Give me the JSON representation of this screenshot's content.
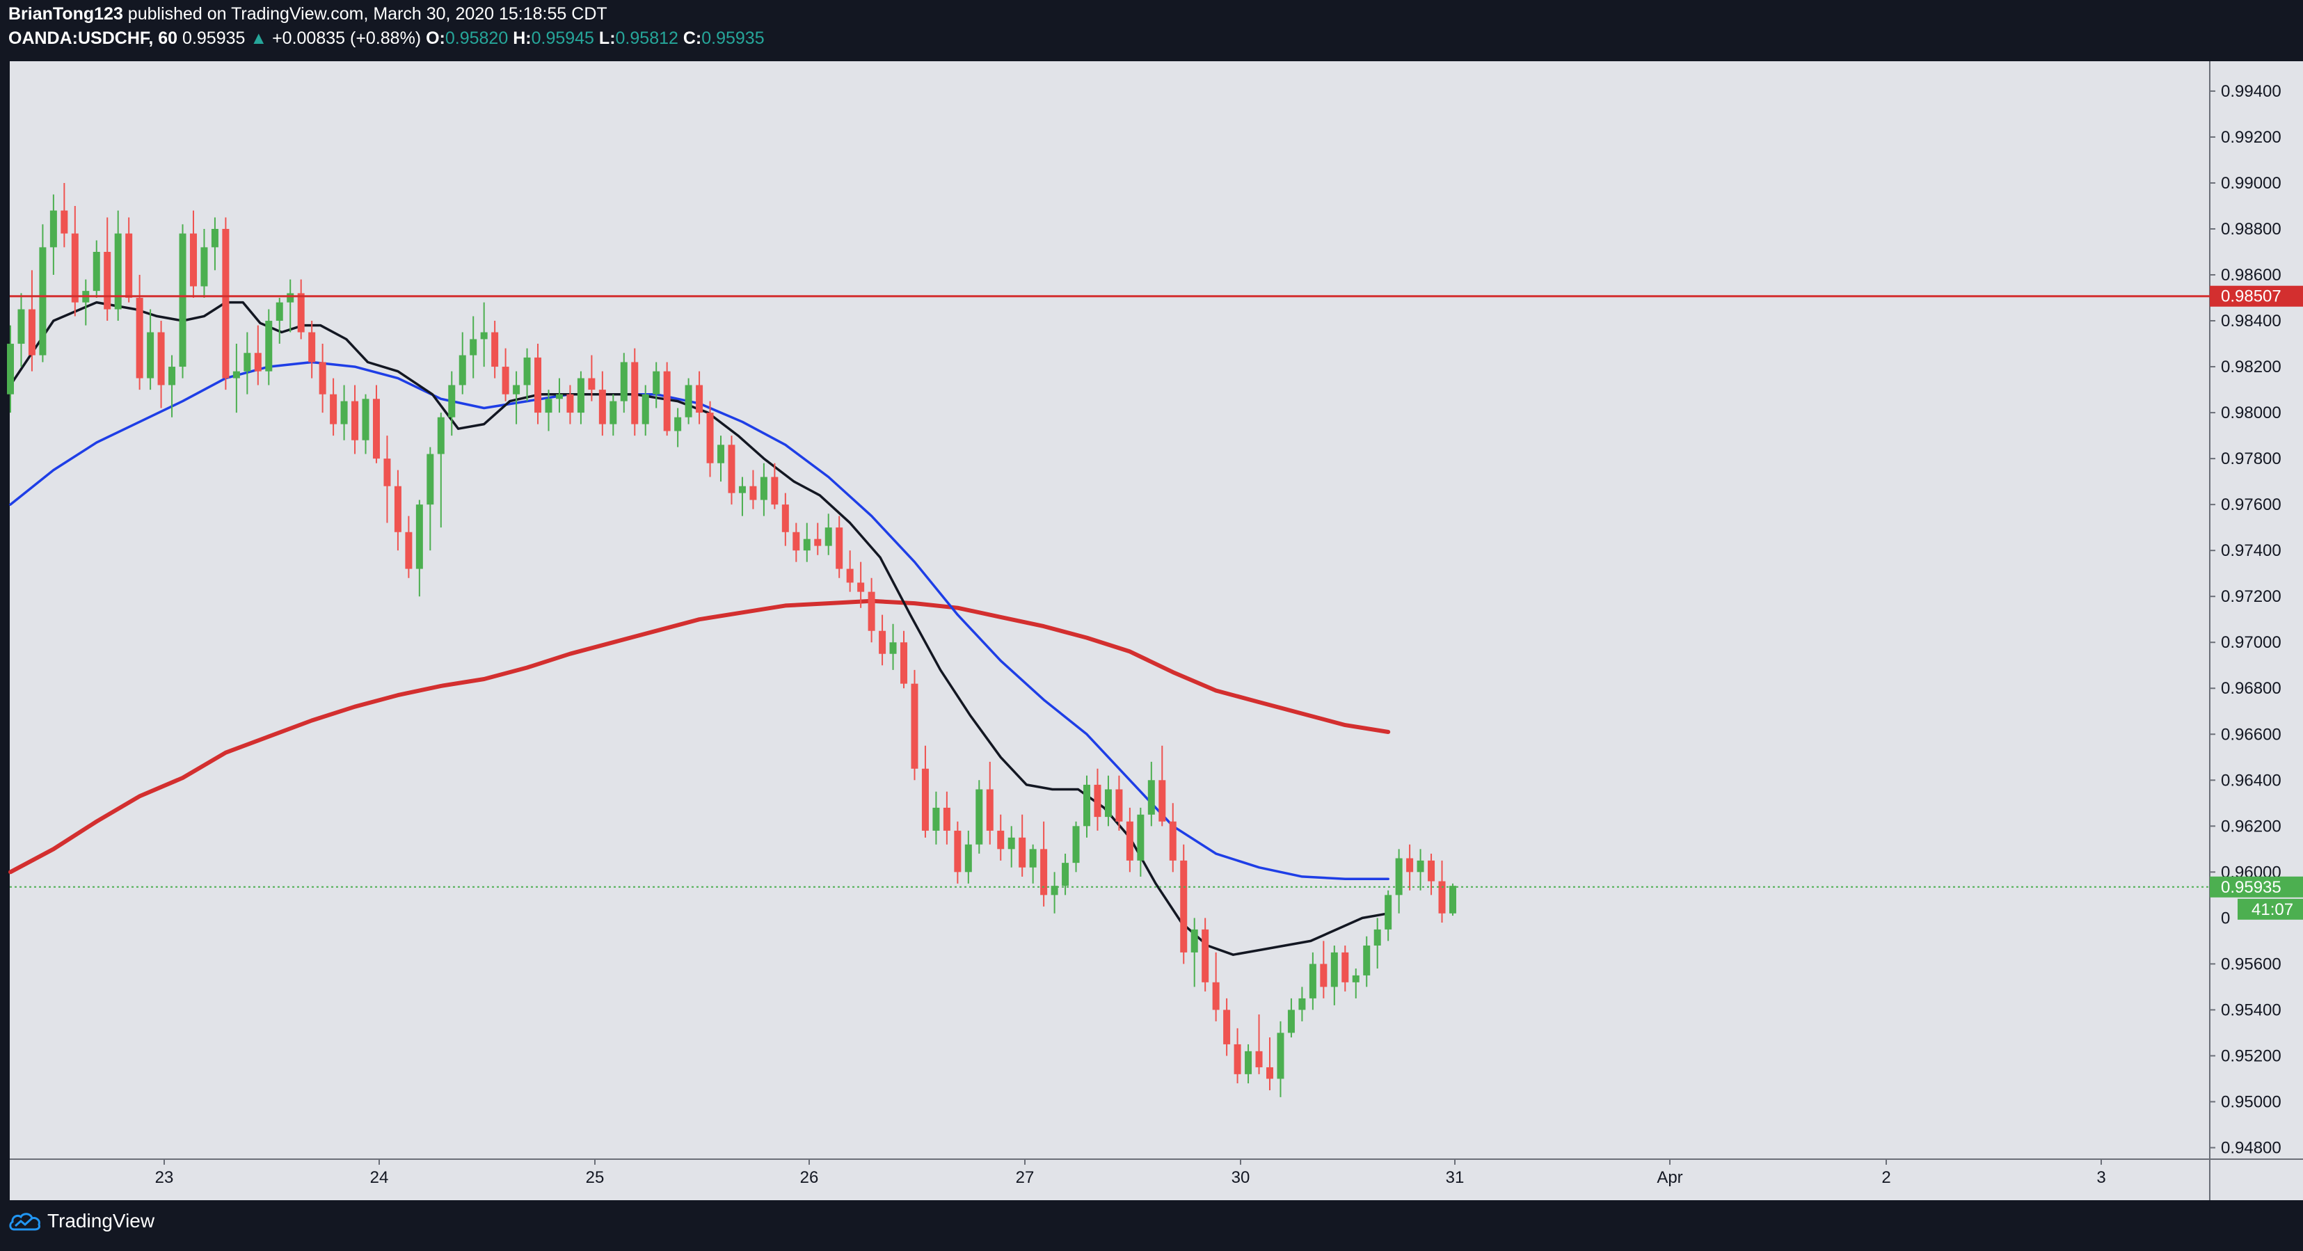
{
  "header": {
    "author": "BrianTong123",
    "published": "published on TradingView.com, March 30, 2020 15:18:55 CDT",
    "symbol": "OANDA:USDCHF, 60",
    "last": "0.95935",
    "change_arrow": "▲",
    "change": "+0.00835 (+0.88%)",
    "o_label": "O:",
    "o": "0.95820",
    "h_label": "H:",
    "h": "0.95945",
    "l_label": "L:",
    "l": "0.95812",
    "c_label": "C:",
    "c": "0.95935"
  },
  "price_axis": {
    "ticks": [
      "0.99400",
      "0.99200",
      "0.99000",
      "0.98800",
      "0.98600",
      "0.98400",
      "0.98200",
      "0.98000",
      "0.97800",
      "0.97600",
      "0.97400",
      "0.97200",
      "0.97000",
      "0.96800",
      "0.96600",
      "0.96400",
      "0.96200",
      "0.96000",
      "0.95600",
      "0.95400",
      "0.95200",
      "0.95000",
      "0.94800"
    ],
    "resistance_label": "0.98507",
    "current_label": "0.95935",
    "countdown_label": "41:07",
    "hidden_tick_fragment": "0"
  },
  "time_axis": {
    "labels": [
      "23",
      "24",
      "25",
      "26",
      "27",
      "30",
      "31",
      "Apr",
      "2",
      "3"
    ]
  },
  "footer": {
    "brand": "TradingView"
  },
  "colors": {
    "background": "#131722",
    "chart_bg": "#e1e3e8",
    "up": "#4caf50",
    "down": "#ef5350",
    "ma_fast": "#131722",
    "ma_mid": "#1e3ee6",
    "ma_slow": "#d32f2f",
    "resistance": "#d32f2f",
    "current_line": "#4caf50"
  },
  "chart_data": {
    "type": "candlestick",
    "symbol": "OANDA:USDCHF",
    "interval": "60",
    "ylim": [
      0.9475,
      0.9953
    ],
    "x_labels": [
      "23",
      "24",
      "25",
      "26",
      "27",
      "30",
      "31",
      "Apr",
      "2",
      "3"
    ],
    "resistance_level": 0.98507,
    "current_price": 0.95935,
    "ma_fast": [
      [
        0,
        0.9812
      ],
      [
        1.0,
        0.984
      ],
      [
        2,
        0.9848
      ],
      [
        2.9,
        0.9845
      ],
      [
        3.4,
        0.9842
      ],
      [
        4.0,
        0.984
      ],
      [
        4.5,
        0.9842
      ],
      [
        5.0,
        0.9848
      ],
      [
        5.4,
        0.9848
      ],
      [
        5.8,
        0.9839
      ],
      [
        6.3,
        0.9835
      ],
      [
        6.8,
        0.9838
      ],
      [
        7.2,
        0.9838
      ],
      [
        7.8,
        0.9832
      ],
      [
        8.3,
        0.9822
      ],
      [
        9.0,
        0.9818
      ],
      [
        9.8,
        0.9808
      ],
      [
        10.4,
        0.9793
      ],
      [
        11.0,
        0.9795
      ],
      [
        11.6,
        0.9805
      ],
      [
        12.3,
        0.9808
      ],
      [
        13.5,
        0.9808
      ],
      [
        14.5,
        0.9808
      ],
      [
        15.5,
        0.9805
      ],
      [
        16.2,
        0.98
      ],
      [
        16.9,
        0.979
      ],
      [
        17.5,
        0.978
      ],
      [
        18.2,
        0.977
      ],
      [
        18.8,
        0.9764
      ],
      [
        19.5,
        0.9752
      ],
      [
        20.2,
        0.9737
      ],
      [
        20.9,
        0.9712
      ],
      [
        21.6,
        0.9688
      ],
      [
        22.3,
        0.9668
      ],
      [
        23.0,
        0.965
      ],
      [
        23.6,
        0.9638
      ],
      [
        24.2,
        0.9636
      ],
      [
        24.8,
        0.9636
      ],
      [
        25.4,
        0.9628
      ],
      [
        26.0,
        0.9615
      ],
      [
        26.6,
        0.9595
      ],
      [
        27.2,
        0.9578
      ],
      [
        27.8,
        0.9568
      ],
      [
        28.4,
        0.9564
      ],
      [
        29.0,
        0.9566
      ],
      [
        29.6,
        0.9568
      ],
      [
        30.2,
        0.957
      ],
      [
        30.8,
        0.9575
      ],
      [
        31.4,
        0.958
      ],
      [
        32.0,
        0.9582
      ]
    ],
    "ma_mid": [
      [
        0,
        0.976
      ],
      [
        1,
        0.9775
      ],
      [
        2,
        0.9787
      ],
      [
        3,
        0.9796
      ],
      [
        4,
        0.9805
      ],
      [
        5,
        0.9815
      ],
      [
        6,
        0.982
      ],
      [
        7,
        0.9822
      ],
      [
        8,
        0.982
      ],
      [
        9,
        0.9815
      ],
      [
        10,
        0.9806
      ],
      [
        11,
        0.9802
      ],
      [
        12,
        0.9805
      ],
      [
        13,
        0.9808
      ],
      [
        14,
        0.9808
      ],
      [
        15,
        0.9808
      ],
      [
        16,
        0.9804
      ],
      [
        17,
        0.9796
      ],
      [
        18,
        0.9786
      ],
      [
        19,
        0.9772
      ],
      [
        20,
        0.9755
      ],
      [
        21,
        0.9735
      ],
      [
        22,
        0.9712
      ],
      [
        23,
        0.9692
      ],
      [
        24,
        0.9675
      ],
      [
        25,
        0.966
      ],
      [
        26,
        0.964
      ],
      [
        27,
        0.962
      ],
      [
        28,
        0.9608
      ],
      [
        29,
        0.9602
      ],
      [
        30,
        0.9598
      ],
      [
        31,
        0.9597
      ],
      [
        32,
        0.9597
      ]
    ],
    "ma_slow": [
      [
        0,
        0.96
      ],
      [
        1,
        0.961
      ],
      [
        2,
        0.9622
      ],
      [
        3,
        0.9633
      ],
      [
        4,
        0.9641
      ],
      [
        5,
        0.9652
      ],
      [
        6,
        0.9659
      ],
      [
        7,
        0.9666
      ],
      [
        8,
        0.9672
      ],
      [
        9,
        0.9677
      ],
      [
        10,
        0.9681
      ],
      [
        11,
        0.9684
      ],
      [
        12,
        0.9689
      ],
      [
        13,
        0.9695
      ],
      [
        14,
        0.97
      ],
      [
        15,
        0.9705
      ],
      [
        16,
        0.971
      ],
      [
        17,
        0.9713
      ],
      [
        18,
        0.9716
      ],
      [
        19,
        0.9717
      ],
      [
        20,
        0.9718
      ],
      [
        21,
        0.9717
      ],
      [
        22,
        0.9715
      ],
      [
        23,
        0.9711
      ],
      [
        24,
        0.9707
      ],
      [
        25,
        0.9702
      ],
      [
        26,
        0.9696
      ],
      [
        27,
        0.9687
      ],
      [
        28,
        0.9679
      ],
      [
        29,
        0.9674
      ],
      [
        30,
        0.9669
      ],
      [
        31,
        0.9664
      ],
      [
        32,
        0.9661
      ]
    ],
    "candles": [
      [
        0.9808,
        0.9838,
        0.98,
        0.983
      ],
      [
        0.983,
        0.9852,
        0.982,
        0.9845
      ],
      [
        0.9845,
        0.9862,
        0.9818,
        0.9825
      ],
      [
        0.9825,
        0.9882,
        0.9822,
        0.9872
      ],
      [
        0.9872,
        0.9895,
        0.986,
        0.9888
      ],
      [
        0.9888,
        0.99,
        0.9872,
        0.9878
      ],
      [
        0.9878,
        0.989,
        0.9842,
        0.9848
      ],
      [
        0.9848,
        0.9858,
        0.9838,
        0.9853
      ],
      [
        0.9853,
        0.9875,
        0.985,
        0.987
      ],
      [
        0.987,
        0.9885,
        0.984,
        0.9845
      ],
      [
        0.9845,
        0.9888,
        0.984,
        0.9878
      ],
      [
        0.9878,
        0.9885,
        0.9848,
        0.985
      ],
      [
        0.985,
        0.986,
        0.981,
        0.9815
      ],
      [
        0.9815,
        0.9845,
        0.981,
        0.9835
      ],
      [
        0.9835,
        0.984,
        0.9802,
        0.9812
      ],
      [
        0.9812,
        0.9825,
        0.9798,
        0.982
      ],
      [
        0.982,
        0.9882,
        0.9815,
        0.9878
      ],
      [
        0.9878,
        0.9888,
        0.985,
        0.9855
      ],
      [
        0.9855,
        0.988,
        0.985,
        0.9872
      ],
      [
        0.9872,
        0.9885,
        0.9862,
        0.988
      ],
      [
        0.988,
        0.9885,
        0.981,
        0.9815
      ],
      [
        0.9815,
        0.983,
        0.98,
        0.9818
      ],
      [
        0.9818,
        0.9835,
        0.9808,
        0.9826
      ],
      [
        0.9826,
        0.9838,
        0.9812,
        0.9818
      ],
      [
        0.9818,
        0.9845,
        0.9812,
        0.984
      ],
      [
        0.984,
        0.985,
        0.983,
        0.9848
      ],
      [
        0.9848,
        0.9858,
        0.9835,
        0.9852
      ],
      [
        0.9852,
        0.9858,
        0.9832,
        0.9835
      ],
      [
        0.9835,
        0.984,
        0.9815,
        0.9822
      ],
      [
        0.9822,
        0.983,
        0.98,
        0.9808
      ],
      [
        0.9808,
        0.9815,
        0.979,
        0.9795
      ],
      [
        0.9795,
        0.9812,
        0.9788,
        0.9805
      ],
      [
        0.9805,
        0.9812,
        0.9782,
        0.9788
      ],
      [
        0.9788,
        0.9808,
        0.9782,
        0.9806
      ],
      [
        0.9806,
        0.9812,
        0.9778,
        0.978
      ],
      [
        0.978,
        0.979,
        0.9752,
        0.9768
      ],
      [
        0.9768,
        0.9775,
        0.974,
        0.9748
      ],
      [
        0.9748,
        0.9755,
        0.9728,
        0.9732
      ],
      [
        0.9732,
        0.9762,
        0.972,
        0.976
      ],
      [
        0.976,
        0.9785,
        0.974,
        0.9782
      ],
      [
        0.9782,
        0.98,
        0.975,
        0.9798
      ],
      [
        0.9798,
        0.9818,
        0.979,
        0.9812
      ],
      [
        0.9812,
        0.9835,
        0.9808,
        0.9825
      ],
      [
        0.9825,
        0.9842,
        0.9815,
        0.9832
      ],
      [
        0.9832,
        0.9848,
        0.982,
        0.9835
      ],
      [
        0.9835,
        0.984,
        0.9815,
        0.982
      ],
      [
        0.982,
        0.9828,
        0.9805,
        0.9808
      ],
      [
        0.9808,
        0.9818,
        0.9795,
        0.9812
      ],
      [
        0.9812,
        0.9828,
        0.9805,
        0.9824
      ],
      [
        0.9824,
        0.983,
        0.9795,
        0.98
      ],
      [
        0.98,
        0.981,
        0.9792,
        0.9806
      ],
      [
        0.9806,
        0.9815,
        0.98,
        0.9808
      ],
      [
        0.9808,
        0.9812,
        0.9795,
        0.98
      ],
      [
        0.98,
        0.9818,
        0.9795,
        0.9815
      ],
      [
        0.9815,
        0.9825,
        0.9805,
        0.981
      ],
      [
        0.981,
        0.9818,
        0.979,
        0.9795
      ],
      [
        0.9795,
        0.9808,
        0.979,
        0.9805
      ],
      [
        0.9805,
        0.9826,
        0.98,
        0.9822
      ],
      [
        0.9822,
        0.9828,
        0.979,
        0.9795
      ],
      [
        0.9795,
        0.9812,
        0.979,
        0.9808
      ],
      [
        0.9808,
        0.9822,
        0.9802,
        0.9818
      ],
      [
        0.9818,
        0.9822,
        0.979,
        0.9792
      ],
      [
        0.9792,
        0.9802,
        0.9785,
        0.9798
      ],
      [
        0.9798,
        0.9815,
        0.9795,
        0.9812
      ],
      [
        0.9812,
        0.9818,
        0.9795,
        0.98
      ],
      [
        0.98,
        0.9805,
        0.9772,
        0.9778
      ],
      [
        0.9778,
        0.979,
        0.977,
        0.9786
      ],
      [
        0.9786,
        0.979,
        0.976,
        0.9765
      ],
      [
        0.9765,
        0.9772,
        0.9755,
        0.9768
      ],
      [
        0.9768,
        0.9775,
        0.9758,
        0.9762
      ],
      [
        0.9762,
        0.9778,
        0.9755,
        0.9772
      ],
      [
        0.9772,
        0.9778,
        0.9758,
        0.976
      ],
      [
        0.976,
        0.9765,
        0.9742,
        0.9748
      ],
      [
        0.9748,
        0.9752,
        0.9735,
        0.974
      ],
      [
        0.974,
        0.9752,
        0.9735,
        0.9745
      ],
      [
        0.9745,
        0.9752,
        0.9738,
        0.9742
      ],
      [
        0.9742,
        0.9756,
        0.9738,
        0.975
      ],
      [
        0.975,
        0.9755,
        0.9728,
        0.9732
      ],
      [
        0.9732,
        0.974,
        0.9722,
        0.9726
      ],
      [
        0.9726,
        0.9735,
        0.9715,
        0.9722
      ],
      [
        0.9722,
        0.9728,
        0.97,
        0.9705
      ],
      [
        0.9705,
        0.9712,
        0.969,
        0.9695
      ],
      [
        0.9695,
        0.9708,
        0.9688,
        0.97
      ],
      [
        0.97,
        0.9705,
        0.968,
        0.9682
      ],
      [
        0.9682,
        0.9688,
        0.964,
        0.9645
      ],
      [
        0.9645,
        0.9655,
        0.9615,
        0.9618
      ],
      [
        0.9618,
        0.9635,
        0.9612,
        0.9628
      ],
      [
        0.9628,
        0.9635,
        0.9612,
        0.9618
      ],
      [
        0.9618,
        0.9622,
        0.9595,
        0.96
      ],
      [
        0.96,
        0.9618,
        0.9595,
        0.9612
      ],
      [
        0.9612,
        0.964,
        0.9608,
        0.9636
      ],
      [
        0.9636,
        0.9648,
        0.9612,
        0.9618
      ],
      [
        0.9618,
        0.9625,
        0.9605,
        0.961
      ],
      [
        0.961,
        0.962,
        0.9602,
        0.9615
      ],
      [
        0.9615,
        0.9625,
        0.9598,
        0.9602
      ],
      [
        0.9602,
        0.9612,
        0.9595,
        0.961
      ],
      [
        0.961,
        0.9622,
        0.9585,
        0.959
      ],
      [
        0.959,
        0.96,
        0.9582,
        0.9594
      ],
      [
        0.9594,
        0.9608,
        0.959,
        0.9604
      ],
      [
        0.9604,
        0.9622,
        0.96,
        0.962
      ],
      [
        0.962,
        0.9642,
        0.9615,
        0.9638
      ],
      [
        0.9638,
        0.9645,
        0.9618,
        0.9624
      ],
      [
        0.9624,
        0.9642,
        0.962,
        0.9636
      ],
      [
        0.9636,
        0.9642,
        0.9618,
        0.9622
      ],
      [
        0.9622,
        0.9628,
        0.96,
        0.9605
      ],
      [
        0.9605,
        0.9628,
        0.9598,
        0.9625
      ],
      [
        0.9625,
        0.9648,
        0.962,
        0.964
      ],
      [
        0.964,
        0.9655,
        0.962,
        0.9622
      ],
      [
        0.9622,
        0.963,
        0.96,
        0.9605
      ],
      [
        0.9605,
        0.9612,
        0.956,
        0.9565
      ],
      [
        0.9565,
        0.958,
        0.955,
        0.9575
      ],
      [
        0.9575,
        0.958,
        0.9548,
        0.9552
      ],
      [
        0.9552,
        0.9565,
        0.9535,
        0.954
      ],
      [
        0.954,
        0.9545,
        0.952,
        0.9525
      ],
      [
        0.9525,
        0.9532,
        0.9508,
        0.9512
      ],
      [
        0.9512,
        0.9525,
        0.9508,
        0.9522
      ],
      [
        0.9522,
        0.9538,
        0.9512,
        0.9515
      ],
      [
        0.9515,
        0.9528,
        0.9505,
        0.951
      ],
      [
        0.951,
        0.9535,
        0.9502,
        0.953
      ],
      [
        0.953,
        0.9545,
        0.9528,
        0.954
      ],
      [
        0.954,
        0.955,
        0.9535,
        0.9545
      ],
      [
        0.9545,
        0.9565,
        0.954,
        0.956
      ],
      [
        0.956,
        0.957,
        0.9545,
        0.955
      ],
      [
        0.955,
        0.9568,
        0.9542,
        0.9565
      ],
      [
        0.9565,
        0.9568,
        0.9548,
        0.9552
      ],
      [
        0.9552,
        0.9558,
        0.9545,
        0.9555
      ],
      [
        0.9555,
        0.9572,
        0.955,
        0.9568
      ],
      [
        0.9568,
        0.958,
        0.9558,
        0.9575
      ],
      [
        0.9575,
        0.9592,
        0.957,
        0.959
      ],
      [
        0.959,
        0.961,
        0.9582,
        0.9606
      ],
      [
        0.9606,
        0.9612,
        0.9592,
        0.96
      ],
      [
        0.96,
        0.961,
        0.9592,
        0.9605
      ],
      [
        0.9605,
        0.9608,
        0.959,
        0.9596
      ],
      [
        0.9596,
        0.9605,
        0.9578,
        0.9582
      ],
      [
        0.9582,
        0.9595,
        0.9581,
        0.9594
      ]
    ]
  }
}
